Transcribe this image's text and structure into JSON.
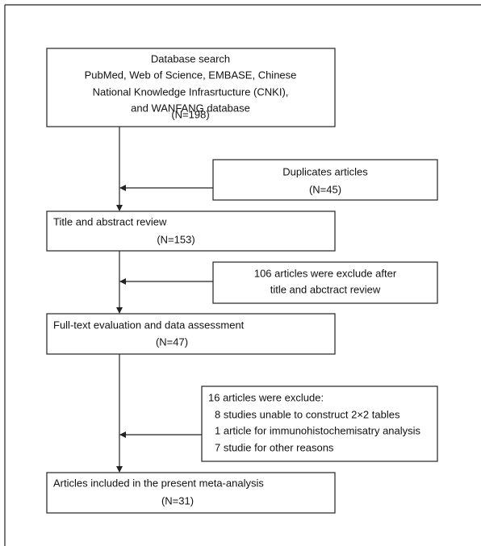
{
  "nodes": [
    {
      "lines": [
        "Database search",
        "PubMed, Web of Science, EMBASE, Chinese",
        "National Knowledge Infrasrtucture (CNKI),",
        "and WANFANG database",
        "(N=198)"
      ]
    },
    {
      "lines": [
        "Duplicates articles",
        "(N=45)"
      ]
    },
    {
      "lines": [
        "Title and abstract review",
        "(N=153)"
      ]
    },
    {
      "lines": [
        "106 articles were exclude after",
        "title and abctract review"
      ]
    },
    {
      "lines": [
        "Full-text evaluation and data assessment",
        "(N=47)"
      ]
    },
    {
      "lines": [
        "16 articles were exclude:",
        "8 studies unable to construct 2×2 tables",
        "1 article for immunohistochemisatry analysis",
        "7 studie for other reasons"
      ]
    },
    {
      "lines": [
        "Articles included in the present meta-analysis",
        "(N=31)"
      ]
    }
  ]
}
